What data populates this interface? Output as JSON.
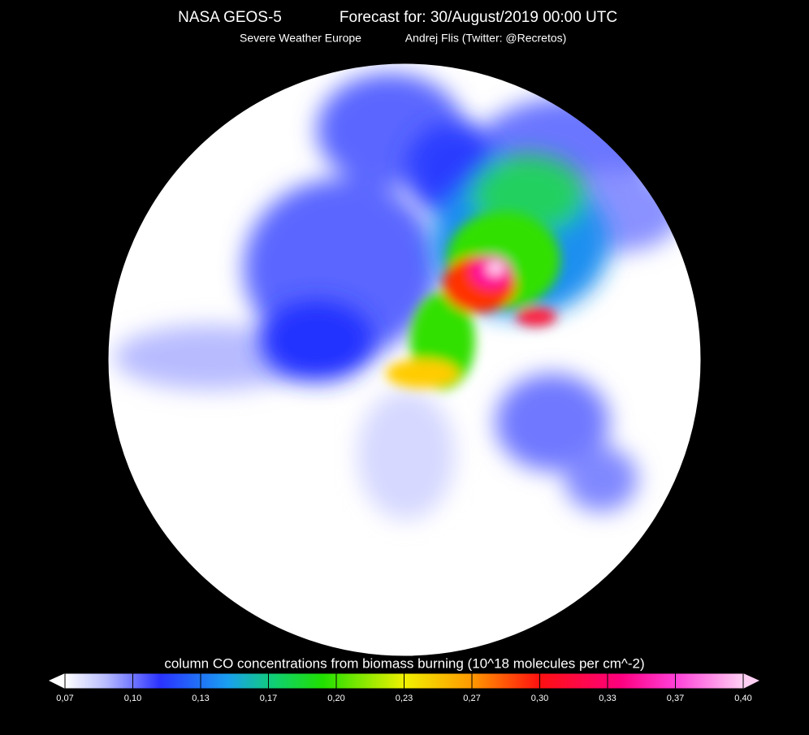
{
  "header": {
    "model": "NASA GEOS-5",
    "forecast": "Forecast for: 30/August/2019 00:00 UTC",
    "source": "Severe Weather Europe",
    "author": "Andrej Flis (Twitter: @Recretos)"
  },
  "legend": {
    "title": "column CO concentrations from biomass burning (10^18 molecules per cm^-2)",
    "ticks": [
      "0,07",
      "0,10",
      "0,13",
      "0,17",
      "0,20",
      "0,23",
      "0,27",
      "0,30",
      "0,33",
      "0,37",
      "0,40"
    ]
  }
}
